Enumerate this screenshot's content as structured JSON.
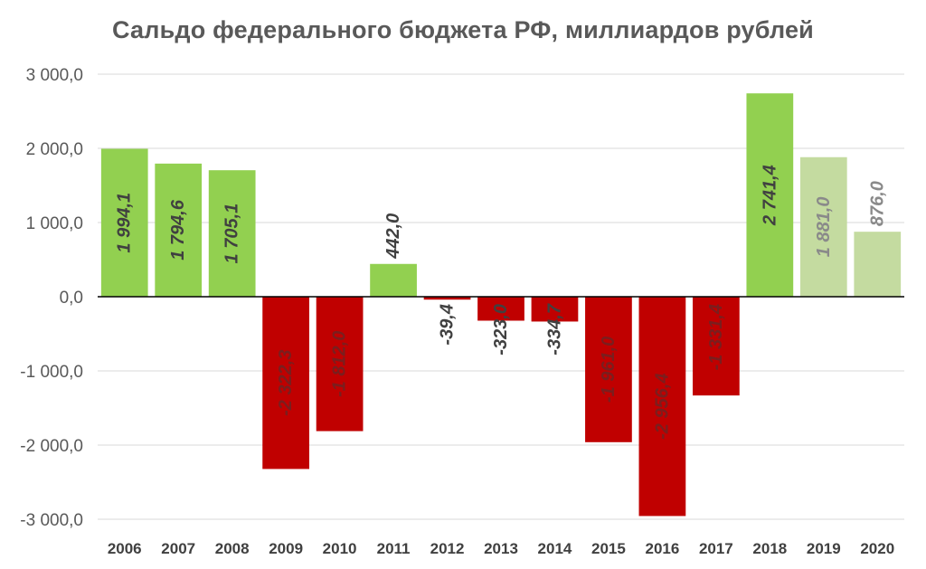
{
  "chart_data": {
    "type": "bar",
    "title": "Сальдо федерального бюджета РФ, миллиардов рублей",
    "categories": [
      "2006",
      "2007",
      "2008",
      "2009",
      "2010",
      "2011",
      "2012",
      "2013",
      "2014",
      "2015",
      "2016",
      "2017",
      "2018",
      "2019",
      "2020"
    ],
    "values": [
      1994.1,
      1794.6,
      1705.1,
      -2322.3,
      -1812.0,
      442.0,
      -39.4,
      -323.0,
      -334.7,
      -1961.0,
      -2956.4,
      -1331.4,
      2741.4,
      1881.0,
      876.0
    ],
    "data_labels": [
      "1 994,1",
      "1 794,6",
      "1 705,1",
      "-2 322,3",
      "-1 812,0",
      "442,0",
      "-39,4",
      "-323,0",
      "-334,7",
      "-1 961,0",
      "-2 956,4",
      "-1 331,4",
      "2 741,4",
      "1 881,0",
      "876,0"
    ],
    "bar_colors": [
      "#92d050",
      "#92d050",
      "#92d050",
      "#c00000",
      "#c00000",
      "#92d050",
      "#c00000",
      "#c00000",
      "#c00000",
      "#c00000",
      "#c00000",
      "#c00000",
      "#92d050",
      "#c4dba0",
      "#c4dba0"
    ],
    "label_colors": [
      "#404040",
      "#404040",
      "#404040",
      "#7a1e1e",
      "#7a1e1e",
      "#404040",
      "#404040",
      "#404040",
      "#404040",
      "#7a1e1e",
      "#7a1e1e",
      "#7a1e1e",
      "#404040",
      "#8a8a8a",
      "#8a8a8a"
    ],
    "ylim": [
      -3000,
      3000
    ],
    "yticks": [
      3000,
      2000,
      1000,
      0,
      -1000,
      -2000,
      -3000
    ],
    "ytick_labels": [
      "3 000,0",
      "2 000,0",
      "1 000,0",
      "0,0",
      "-1 000,0",
      "-2 000,0",
      "-3 000,0"
    ],
    "grid": true,
    "xlabel": "",
    "ylabel": ""
  }
}
